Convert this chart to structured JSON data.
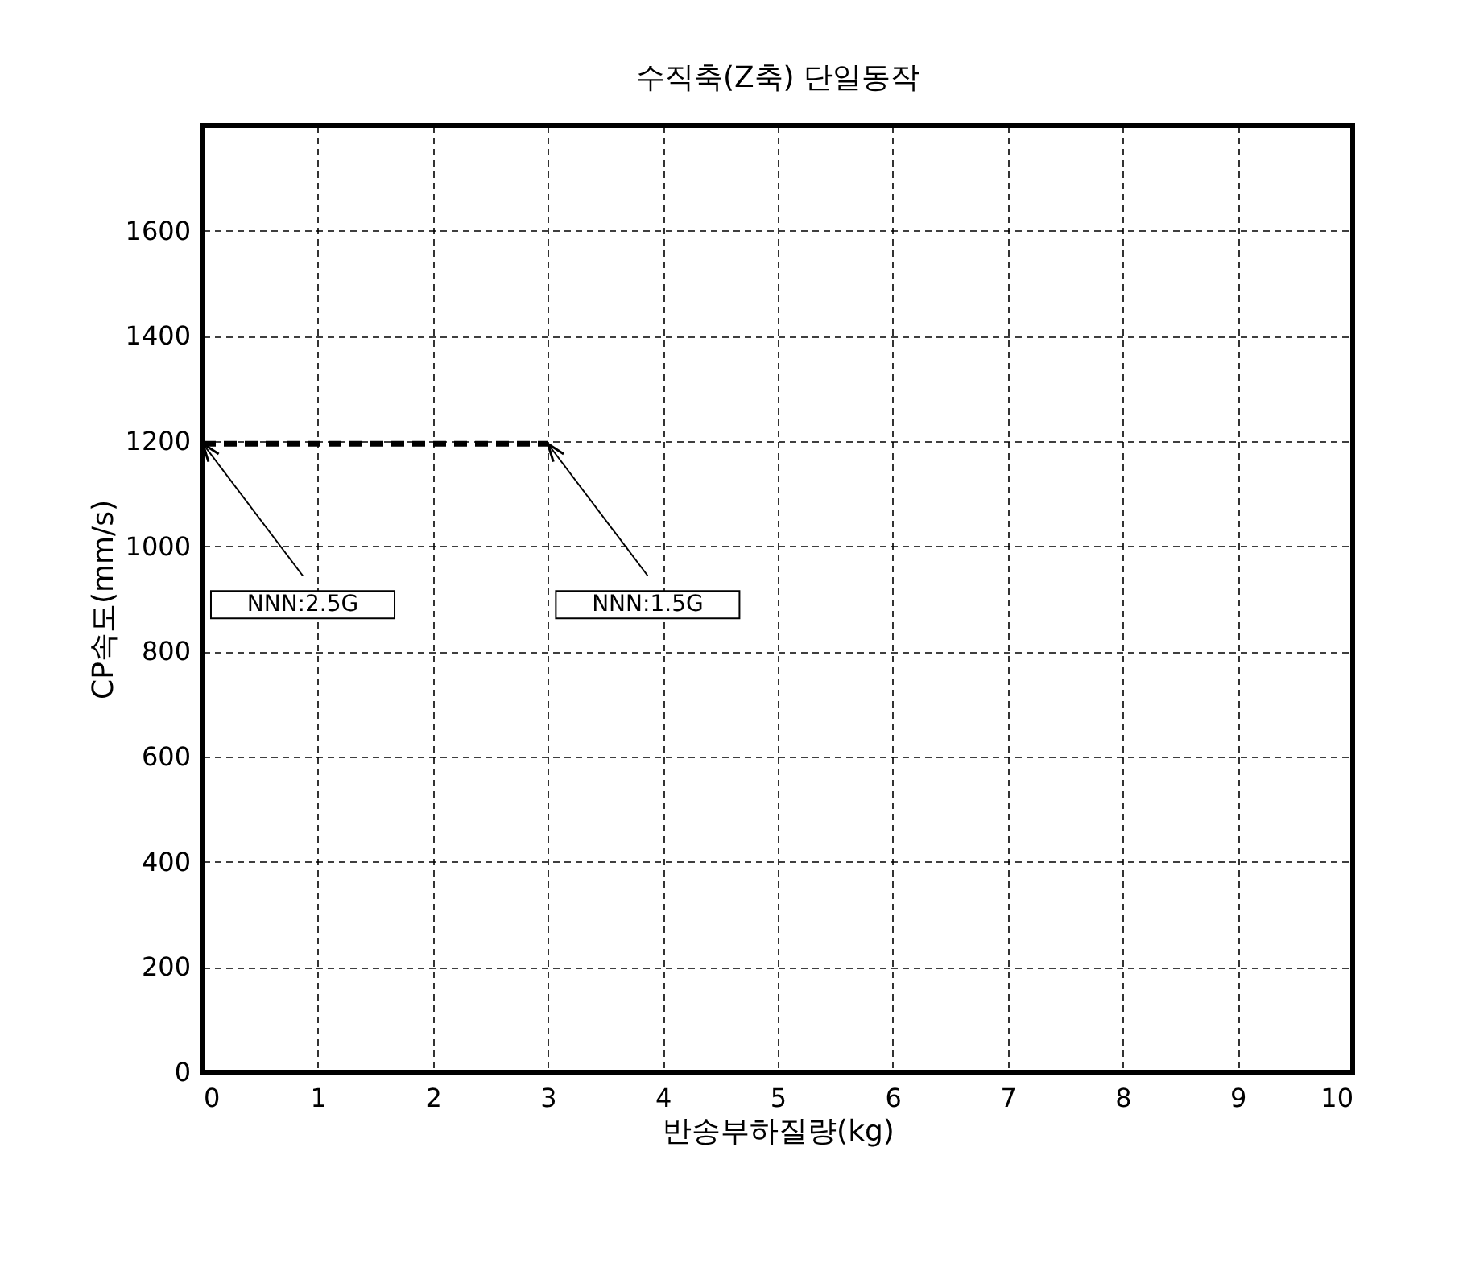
{
  "chart_data": {
    "type": "line",
    "title": "수직축(Z축) 단일동작",
    "xlabel": "반송부하질량(kg)",
    "ylabel": "CP속도(mm/s)",
    "x": [
      0,
      3
    ],
    "series": [
      {
        "color": "#000000",
        "values": [
          1195,
          1195
        ]
      }
    ],
    "xlim": [
      0,
      10
    ],
    "xticks": [
      0,
      1,
      2,
      3,
      4,
      5,
      6,
      7,
      8,
      9,
      10
    ],
    "ylim": [
      0,
      1800
    ],
    "yticks": [
      0,
      200,
      400,
      600,
      800,
      1000,
      1200,
      1400,
      1600
    ],
    "grid": true,
    "line_style": "dashed",
    "marker": "none",
    "annotations": [
      {
        "text": "NNN:2.5G",
        "x": 0,
        "y": 1195
      },
      {
        "text": "NNN:1.5G",
        "x": 3,
        "y": 1195
      }
    ]
  }
}
